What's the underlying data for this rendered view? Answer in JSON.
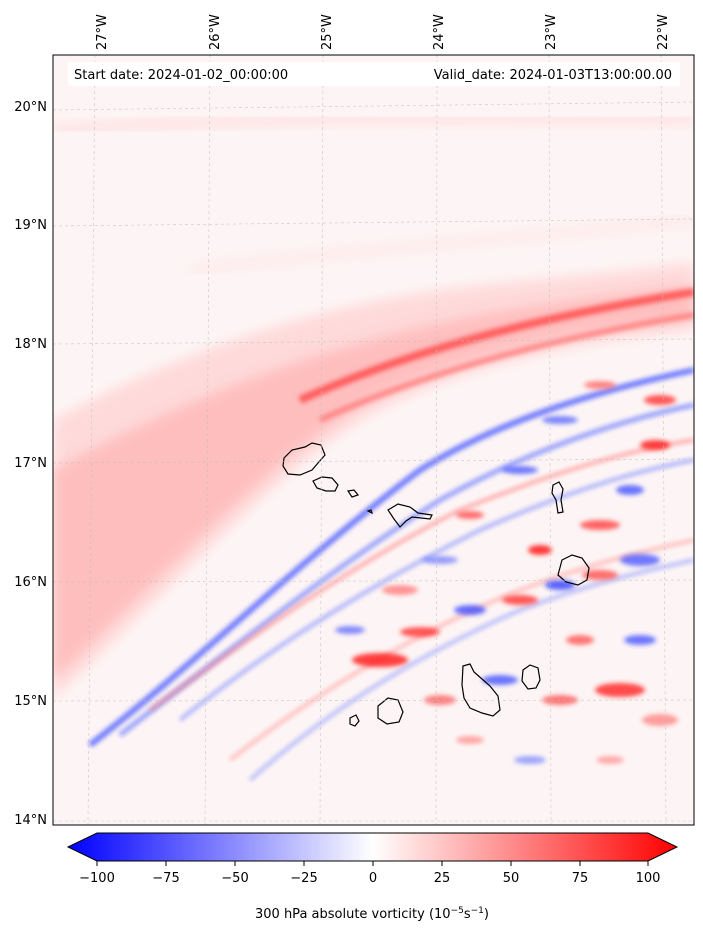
{
  "header": {
    "start_date": "Start date: 2024-01-02_00:00:00",
    "valid_date": "Valid_date: 2024-01-03T13:00:00.00"
  },
  "map": {
    "lon_ticks": [
      "27°W",
      "26°W",
      "25°W",
      "24°W",
      "23°W",
      "22°W"
    ],
    "lat_ticks": [
      "20°N",
      "19°N",
      "18°N",
      "17°N",
      "16°N",
      "15°N",
      "14°N"
    ],
    "lon_range": [
      -27.35,
      -21.8
    ],
    "lat_range": [
      13.95,
      20.42
    ],
    "gridlines": true
  },
  "colorbar": {
    "label": "300 hPa absolute vorticity (10",
    "label_exp": "−5",
    "label_unit": "s",
    "label_unit_exp": "−1",
    "label_close": ")",
    "ticks": [
      "−100",
      "−75",
      "−50",
      "−25",
      "0",
      "25",
      "50",
      "75",
      "100"
    ],
    "range": [
      -100,
      100
    ],
    "colormap": "bwr",
    "extend": "both"
  },
  "colors": {
    "negative": "#0000ff",
    "positive": "#ff0000",
    "zero": "#ffffff",
    "coastline": "#000000"
  }
}
